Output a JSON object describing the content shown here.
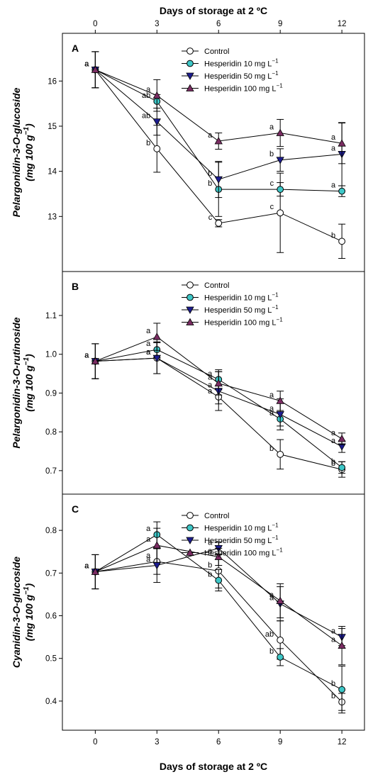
{
  "top_axis_title": "Days of storage at 2 ºC",
  "bottom_axis_title": "Days of storage at 2 ºC",
  "colors": {
    "control": "#ffffff",
    "h10": "#3ec7c7",
    "h50": "#1c1c8f",
    "h100": "#7a2c62"
  },
  "chart_data": [
    {
      "type": "line",
      "panel": "A",
      "ylabel_line1": "Pelargonidin-3-O-glucoside",
      "ylabel_line2": "(mg 100 g",
      "ylabel_sup": "−1",
      "ylabel_close": ")",
      "x": [
        0,
        3,
        6,
        9,
        12
      ],
      "x_ticks": [
        "0",
        "3",
        "6",
        "9",
        "12"
      ],
      "xlim": [
        -1.6,
        13.1
      ],
      "ylim": [
        12.0,
        16.9
      ],
      "y_ticks": [
        13,
        14,
        15,
        16
      ],
      "y_tick_labels": [
        "13",
        "14",
        "15",
        "16"
      ],
      "legend_position": "top-right",
      "series": [
        {
          "key": "control",
          "name": "Control",
          "name_sup": "",
          "values": [
            16.25,
            14.5,
            12.85,
            13.08,
            12.45
          ],
          "errors": [
            0.4,
            0.52,
            0.08,
            0.88,
            0.38
          ],
          "letters": [
            "a",
            "b",
            "c",
            "c",
            "b"
          ]
        },
        {
          "key": "h10",
          "name": "Hesperidin 10 mg L",
          "name_sup": "−1",
          "values": [
            16.25,
            15.55,
            13.6,
            13.6,
            13.56
          ],
          "errors": [
            0.4,
            0.15,
            0.6,
            0.15,
            0.12
          ],
          "letters": [
            "a",
            "ab",
            "b",
            "c",
            "a"
          ]
        },
        {
          "key": "h50",
          "name": "Hesperidin 50 mg L",
          "name_sup": "−1",
          "values": [
            16.25,
            15.1,
            13.82,
            14.25,
            14.38
          ],
          "errors": [
            0.4,
            0.3,
            0.4,
            0.25,
            0.7
          ],
          "letters": [
            "a",
            "ab",
            "b",
            "b",
            "a"
          ]
        },
        {
          "key": "h100",
          "name": "Hesperidin 100 mg L",
          "name_sup": "−1",
          "values": [
            16.25,
            15.68,
            14.67,
            14.85,
            14.62
          ],
          "errors": [
            0.4,
            0.35,
            0.18,
            0.3,
            0.45
          ],
          "letters": [
            "a",
            "a",
            "a",
            "a",
            "a"
          ]
        }
      ]
    },
    {
      "type": "line",
      "panel": "B",
      "ylabel_line1": "Pelargonidin-3-O-rutinoside",
      "ylabel_line2": "(mg 100 g",
      "ylabel_sup": "−1",
      "ylabel_close": ")",
      "x": [
        0,
        3,
        6,
        9,
        12
      ],
      "x_ticks": [
        "0",
        "3",
        "6",
        "9",
        "12"
      ],
      "xlim": [
        -1.6,
        13.1
      ],
      "ylim": [
        0.665,
        1.195
      ],
      "y_ticks": [
        0.7,
        0.8,
        0.9,
        1.0,
        1.1
      ],
      "y_tick_labels": [
        "0.7",
        "0.8",
        "0.9",
        "1.0",
        "1.1"
      ],
      "legend_position": "top-right",
      "series": [
        {
          "key": "control",
          "name": "Control",
          "name_sup": "",
          "values": [
            0.982,
            0.99,
            0.89,
            0.742,
            0.703
          ],
          "errors": [
            0.045,
            0.04,
            0.018,
            0.038,
            0.02
          ],
          "letters": [
            "a",
            "a",
            "a",
            "b",
            "b"
          ]
        },
        {
          "key": "h10",
          "name": "Hesperidin 10 mg L",
          "name_sup": "−1",
          "values": [
            0.982,
            1.012,
            0.935,
            0.833,
            0.708
          ],
          "errors": [
            0.045,
            0.02,
            0.025,
            0.018,
            0.015
          ],
          "letters": [
            "a",
            "a",
            "a",
            "a",
            "b"
          ]
        },
        {
          "key": "h50",
          "name": "Hesperidin 50 mg L",
          "name_sup": "−1",
          "values": [
            0.982,
            0.99,
            0.905,
            0.845,
            0.762
          ],
          "errors": [
            0.045,
            0.04,
            0.05,
            0.04,
            0.015
          ],
          "letters": [
            "a",
            "a",
            "a",
            "a",
            "a"
          ]
        },
        {
          "key": "h100",
          "name": "Hesperidin 100 mg L",
          "name_sup": "−1",
          "values": [
            0.982,
            1.045,
            0.925,
            0.88,
            0.782
          ],
          "errors": [
            0.045,
            0.035,
            0.03,
            0.025,
            0.015
          ],
          "letters": [
            "a",
            "a",
            "a",
            "a",
            "a"
          ]
        }
      ]
    },
    {
      "type": "line",
      "panel": "C",
      "ylabel_line1": "Cyanidin-3-O-glucoside",
      "ylabel_line2": "(mg 100 g",
      "ylabel_sup": "−1",
      "ylabel_close": ")",
      "x": [
        0,
        3,
        6,
        9,
        12
      ],
      "x_ticks": [
        "0",
        "3",
        "6",
        "9",
        "12"
      ],
      "xlim": [
        -1.6,
        13.1
      ],
      "ylim": [
        0.355,
        0.865
      ],
      "y_ticks": [
        0.4,
        0.5,
        0.6,
        0.7,
        0.8
      ],
      "y_tick_labels": [
        "0.4",
        "0.5",
        "0.6",
        "0.7",
        "0.8"
      ],
      "legend_position": "top-right",
      "series": [
        {
          "key": "control",
          "name": "Control",
          "name_sup": "",
          "values": [
            0.703,
            0.727,
            0.705,
            0.543,
            0.398
          ],
          "errors": [
            0.04,
            0.03,
            0.04,
            0.045,
            0.02
          ],
          "letters": [
            "a",
            "a",
            "b",
            "ab",
            "b"
          ]
        },
        {
          "key": "h10",
          "name": "Hesperidin 10 mg L",
          "name_sup": "−1",
          "values": [
            0.703,
            0.79,
            0.683,
            0.503,
            0.427
          ],
          "errors": [
            0.04,
            0.03,
            0.025,
            0.02,
            0.055
          ],
          "letters": [
            "a",
            "a",
            "b",
            "b",
            "b"
          ]
        },
        {
          "key": "h50",
          "name": "Hesperidin 50 mg L",
          "name_sup": "−1",
          "values": [
            0.703,
            0.718,
            0.758,
            0.628,
            0.55
          ],
          "errors": [
            0.04,
            0.04,
            0.015,
            0.04,
            0.02
          ],
          "letters": [
            "a",
            "a",
            "a",
            "a",
            "a"
          ]
        },
        {
          "key": "h100",
          "name": "Hesperidin 100 mg L",
          "name_sup": "−1",
          "values": [
            0.703,
            0.765,
            0.738,
            0.635,
            0.53
          ],
          "errors": [
            0.04,
            0.04,
            0.02,
            0.04,
            0.045
          ],
          "letters": [
            "a",
            "a",
            "a",
            "a",
            "a"
          ]
        }
      ]
    }
  ]
}
